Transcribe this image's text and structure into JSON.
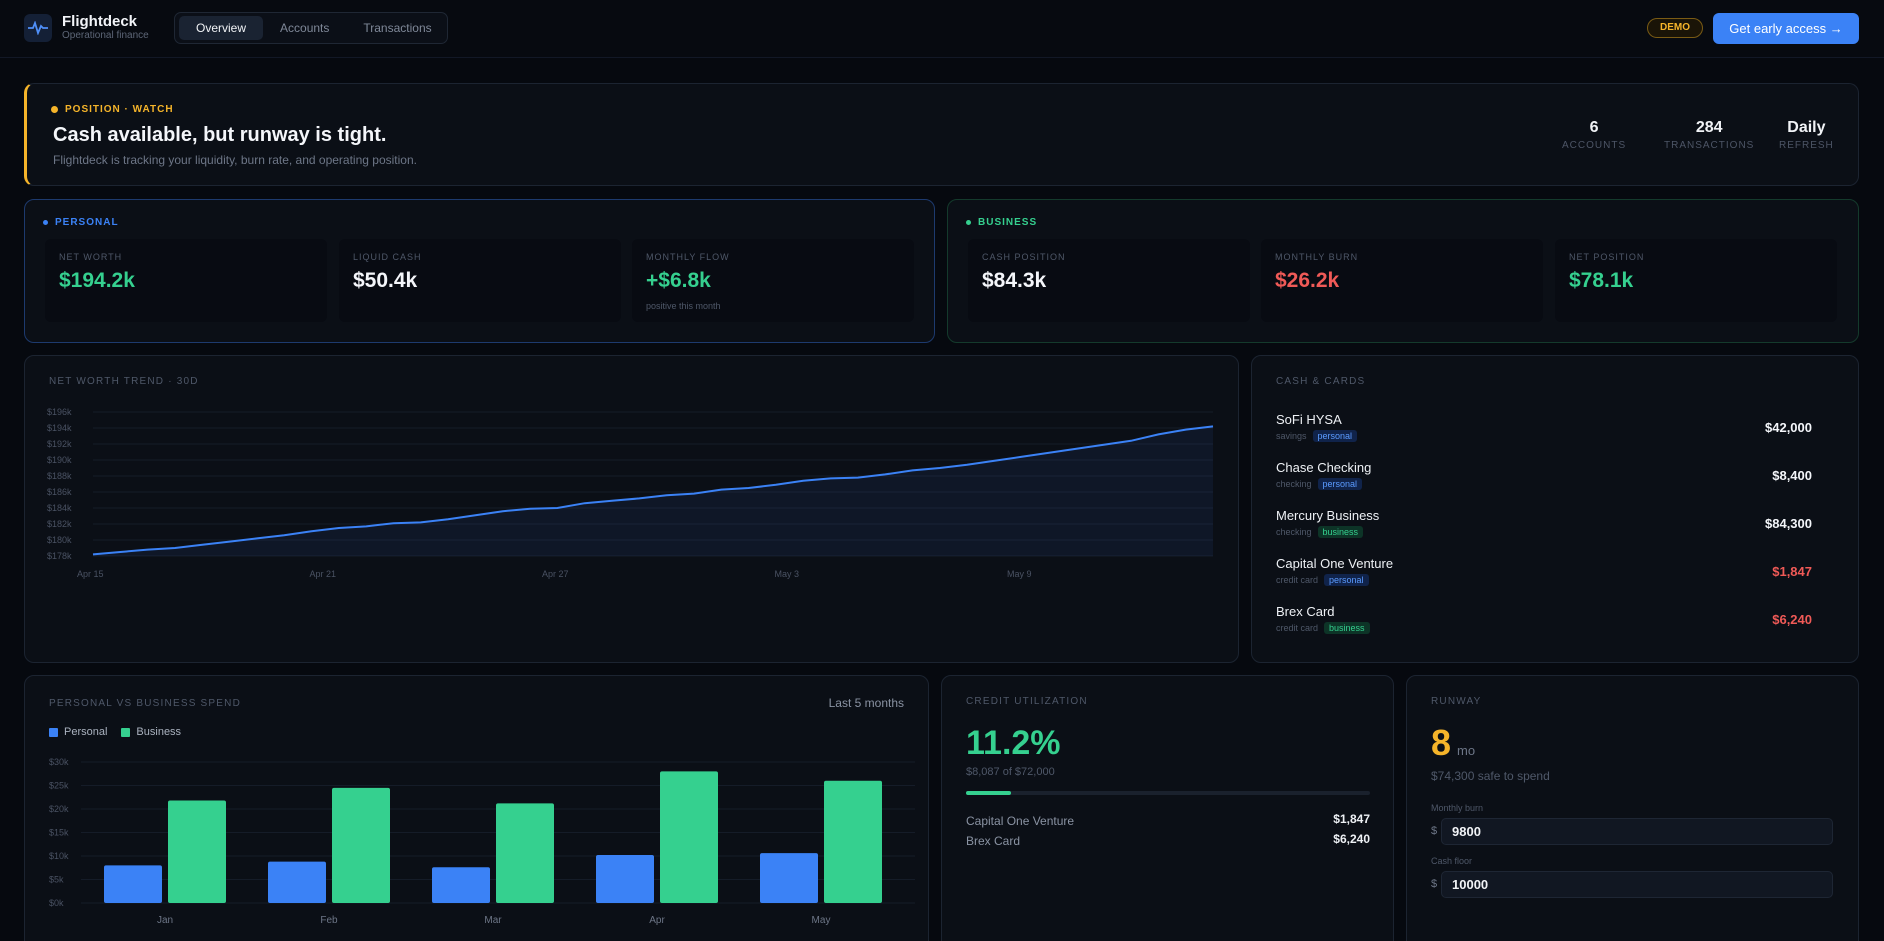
{
  "brand": {
    "name": "Flightdeck",
    "subtitle": "Operational finance"
  },
  "nav": {
    "tabs": [
      "Overview",
      "Accounts",
      "Transactions"
    ],
    "active": "Overview"
  },
  "header": {
    "demo_badge": "DEMO",
    "cta_label": "Get early access →"
  },
  "alert": {
    "tag": "POSITION · WATCH",
    "title": "Cash available, but runway is tight.",
    "subtitle": "Flightdeck is tracking your liquidity, burn rate, and operating position.",
    "stats": [
      {
        "value": "6",
        "label": "ACCOUNTS"
      },
      {
        "value": "284",
        "label": "TRANSACTIONS"
      },
      {
        "value": "Daily",
        "label": "REFRESH"
      }
    ],
    "accent_color": "#f5b42a"
  },
  "personal": {
    "tag": "PERSONAL",
    "tiles": [
      {
        "label": "NET WORTH",
        "value": "$194.2k",
        "sub": "",
        "color": "#35d08f"
      },
      {
        "label": "LIQUID CASH",
        "value": "$50.4k",
        "sub": "",
        "color": "#f4f6fa"
      },
      {
        "label": "MONTHLY FLOW",
        "value": "+$6.8k",
        "sub": "positive this month",
        "color": "#35d08f"
      }
    ]
  },
  "business": {
    "tag": "BUSINESS",
    "tiles": [
      {
        "label": "CASH POSITION",
        "value": "$84.3k",
        "sub": "",
        "color": "#f4f6fa"
      },
      {
        "label": "MONTHLY BURN",
        "value": "$26.2k",
        "sub": "",
        "color": "#f05a57"
      },
      {
        "label": "NET POSITION",
        "value": "$78.1k",
        "sub": "",
        "color": "#35d08f"
      }
    ]
  },
  "trend": {
    "label": "NET WORTH TREND · 30D"
  },
  "cash_cards": {
    "label": "CASH & CARDS",
    "accounts": [
      {
        "name": "SoFi HYSA",
        "type": "savings",
        "scope": "personal",
        "amount": "$42,000",
        "negative": false
      },
      {
        "name": "Chase Checking",
        "type": "checking",
        "scope": "personal",
        "amount": "$8,400",
        "negative": false
      },
      {
        "name": "Mercury Business",
        "type": "checking",
        "scope": "business",
        "amount": "$84,300",
        "negative": false
      },
      {
        "name": "Capital One Venture",
        "type": "credit card",
        "scope": "personal",
        "amount": "$1,847",
        "negative": true
      },
      {
        "name": "Brex Card",
        "type": "credit card",
        "scope": "business",
        "amount": "$6,240",
        "negative": true
      }
    ]
  },
  "spend": {
    "label": "PERSONAL VS BUSINESS SPEND",
    "range": "Last 5 months"
  },
  "credit": {
    "label": "CREDIT UTILIZATION",
    "percent": "11.2%",
    "detail": "$8,087 of $72,000",
    "utilization": 0.112,
    "cards": [
      {
        "name": "Capital One Venture",
        "amount": "$1,847"
      },
      {
        "name": "Brex Card",
        "amount": "$6,240"
      }
    ]
  },
  "runway": {
    "label": "RUNWAY",
    "months": "8",
    "unit": "mo",
    "safe": "$74,300 safe to spend",
    "monthly_burn_label": "Monthly burn",
    "monthly_burn_value": "9800",
    "cash_floor_label": "Cash floor",
    "cash_floor_value": "10000",
    "currency": "$"
  },
  "chart_data": [
    {
      "type": "area",
      "x_ticks": [
        "Apr 15",
        "Apr 21",
        "Apr 27",
        "May 3",
        "May 9"
      ],
      "y_ticks": [
        "$178k",
        "$180k",
        "$182k",
        "$184k",
        "$186k",
        "$188k",
        "$190k",
        "$192k",
        "$194k",
        "$196k"
      ],
      "ylim": [
        178,
        196
      ],
      "series": [
        {
          "values": [
            178.2,
            178.5,
            178.8,
            179.0,
            179.4,
            179.8,
            180.2,
            180.6,
            181.1,
            181.5,
            181.7,
            182.1,
            182.2,
            182.6,
            183.1,
            183.6,
            183.9,
            184.0,
            184.6,
            184.9,
            185.2,
            185.6,
            185.8,
            186.3,
            186.5,
            186.9,
            187.4,
            187.7,
            187.8,
            188.2,
            188.7,
            189.0,
            189.4,
            189.9,
            190.4,
            190.9,
            191.4,
            191.9,
            192.4,
            193.2,
            193.8,
            194.2
          ]
        }
      ],
      "color": "#3b82f6",
      "grid": true
    },
    {
      "type": "bar",
      "categories": [
        "Jan",
        "Feb",
        "Mar",
        "Apr",
        "May"
      ],
      "y_ticks": [
        "$0k",
        "$5k",
        "$10k",
        "$15k",
        "$20k",
        "$25k",
        "$30k"
      ],
      "ylim": [
        0,
        30
      ],
      "series": [
        {
          "name": "Personal",
          "values": [
            8.0,
            8.8,
            7.6,
            10.2,
            10.6
          ],
          "color": "#3b82f6"
        },
        {
          "name": "Business",
          "values": [
            21.8,
            24.5,
            21.2,
            28.0,
            26.0
          ],
          "color": "#35d08f"
        }
      ],
      "legend": "top-left"
    }
  ]
}
